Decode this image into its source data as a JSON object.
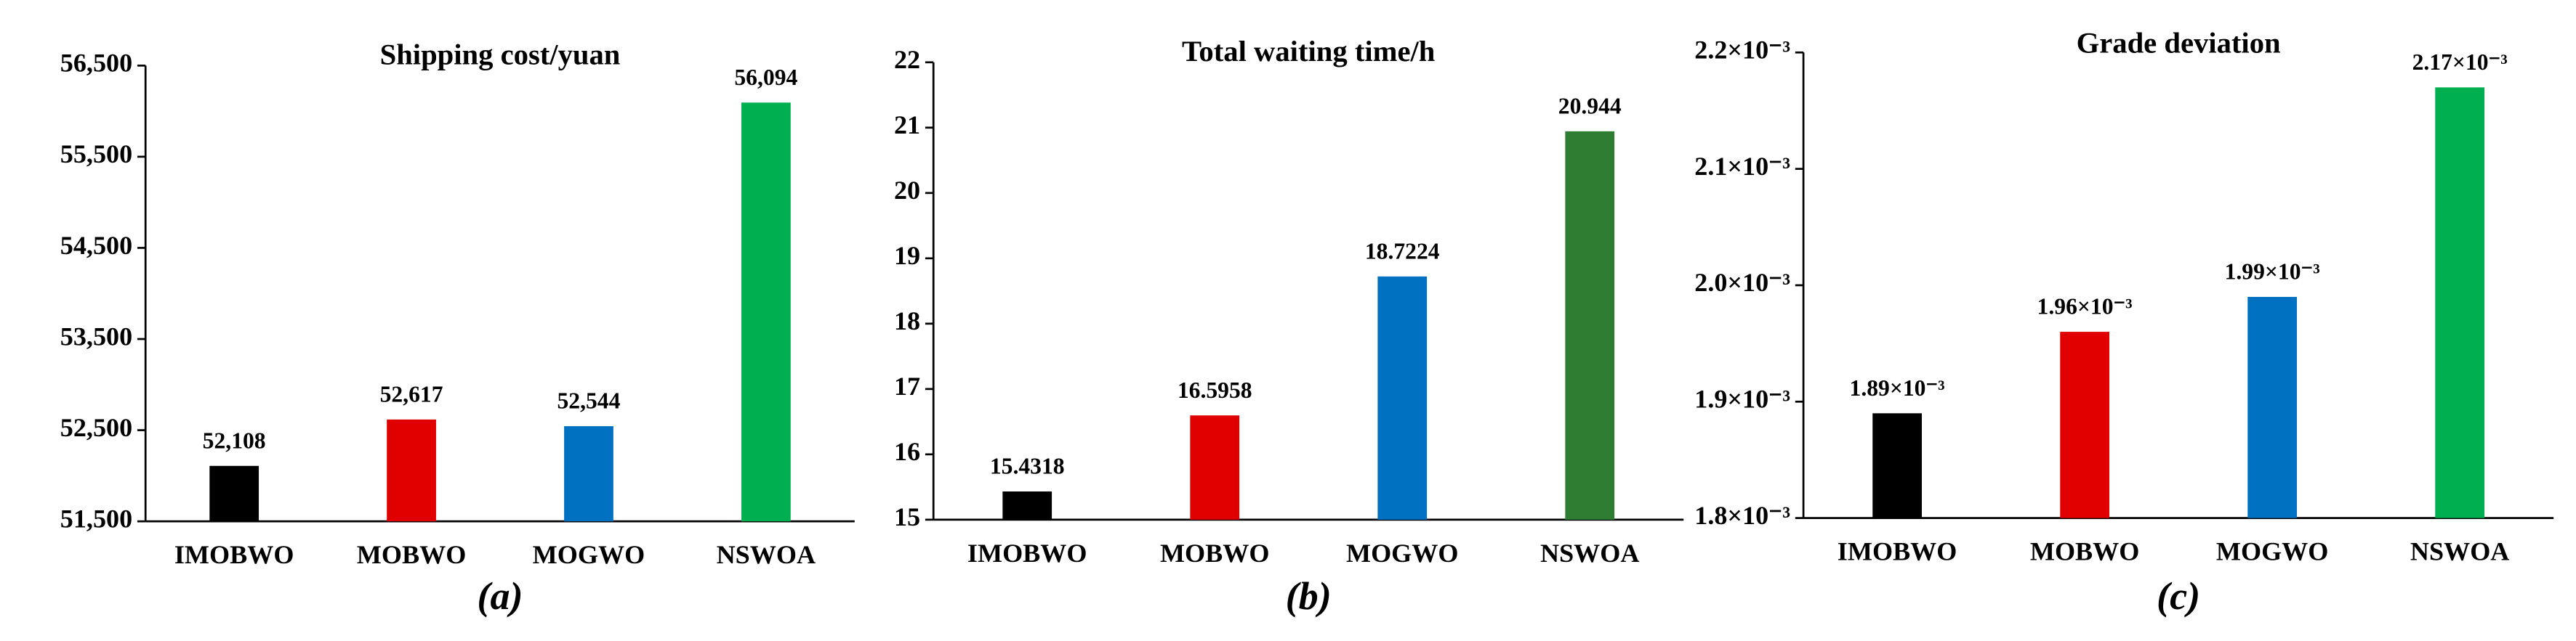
{
  "chart_data": [
    {
      "type": "bar",
      "title": "Shipping cost/yuan",
      "subtitle": "(a)",
      "categories": [
        "IMOBWO",
        "MOBWO",
        "MOGWO",
        "NSWOA"
      ],
      "values": [
        52108,
        52617,
        52544,
        56094
      ],
      "value_labels": [
        "52,108",
        "52,617",
        "52,544",
        "56,094"
      ],
      "colors": [
        "#000000",
        "#e00000",
        "#0070c0",
        "#00b050"
      ],
      "ylim": [
        51500,
        56500
      ],
      "yticks": [
        {
          "value": 51500,
          "label": "51,500"
        },
        {
          "value": 52500,
          "label": "52,500"
        },
        {
          "value": 53500,
          "label": "53,500"
        },
        {
          "value": 54500,
          "label": "54,500"
        },
        {
          "value": 55500,
          "label": "55,500"
        },
        {
          "value": 56500,
          "label": "56,500"
        }
      ]
    },
    {
      "type": "bar",
      "title": "Total waiting time/h",
      "subtitle": "(b)",
      "categories": [
        "IMOBWO",
        "MOBWO",
        "MOGWO",
        "NSWOA"
      ],
      "values": [
        15.4318,
        16.5958,
        18.7224,
        20.944
      ],
      "colors": [
        "#000000",
        "#e00000",
        "#0070c0",
        "#2e7d32"
      ],
      "ylim": [
        15,
        22
      ],
      "yticks": [
        15,
        16,
        17,
        18,
        19,
        20,
        21,
        22
      ]
    },
    {
      "type": "bar",
      "title": "Grade deviation",
      "subtitle": "(c)",
      "categories": [
        "IMOBWO",
        "MOBWO",
        "MOGWO",
        "NSWOA"
      ],
      "values": [
        0.00189,
        0.00196,
        0.00199,
        0.00217
      ],
      "value_labels": [
        "1.89×10⁻³",
        "1.96×10⁻³",
        "1.99×10⁻³",
        "2.17×10⁻³"
      ],
      "colors": [
        "#000000",
        "#e00000",
        "#0070c0",
        "#00b050"
      ],
      "ylim": [
        0.0018,
        0.0022
      ],
      "yticks": [
        {
          "value": 0.0018,
          "label": "1.8×10⁻³"
        },
        {
          "value": 0.0019,
          "label": "1.9×10⁻³"
        },
        {
          "value": 0.002,
          "label": "2.0×10⁻³"
        },
        {
          "value": 0.0021,
          "label": "2.1×10⁻³"
        },
        {
          "value": 0.0022,
          "label": "2.2×10⁻³"
        }
      ]
    }
  ]
}
